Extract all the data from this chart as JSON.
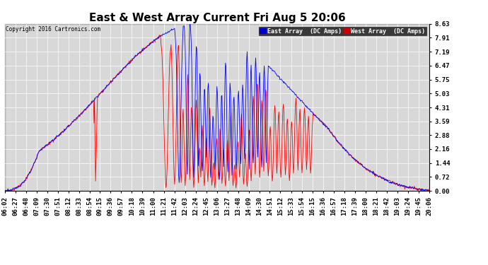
{
  "title": "East & West Array Current Fri Aug 5 20:06",
  "copyright": "Copyright 2016 Cartronics.com",
  "legend_east": "East Array  (DC Amps)",
  "legend_west": "West Array  (DC Amps)",
  "east_color": "#0000ff",
  "west_color": "#ff0000",
  "yticks": [
    0.0,
    0.72,
    1.44,
    2.16,
    2.88,
    3.59,
    4.31,
    5.03,
    5.75,
    6.47,
    7.19,
    7.91,
    8.63
  ],
  "ymax": 8.63,
  "ymin": 0.0,
  "background_color": "#ffffff",
  "plot_bg_color": "#d8d8d8",
  "grid_color": "#ffffff",
  "title_fontsize": 11,
  "tick_fontsize": 6.5,
  "xlabel_rotation": 90,
  "time_labels": [
    "06:02",
    "06:27",
    "06:48",
    "07:09",
    "07:30",
    "07:51",
    "08:12",
    "08:33",
    "08:54",
    "09:15",
    "09:36",
    "09:57",
    "10:18",
    "10:39",
    "11:00",
    "11:21",
    "11:42",
    "12:03",
    "12:24",
    "12:45",
    "13:06",
    "13:27",
    "13:48",
    "14:09",
    "14:30",
    "14:51",
    "15:12",
    "15:33",
    "15:54",
    "16:15",
    "16:36",
    "16:57",
    "17:18",
    "17:39",
    "18:00",
    "18:21",
    "18:42",
    "19:03",
    "19:24",
    "19:45",
    "20:06"
  ]
}
